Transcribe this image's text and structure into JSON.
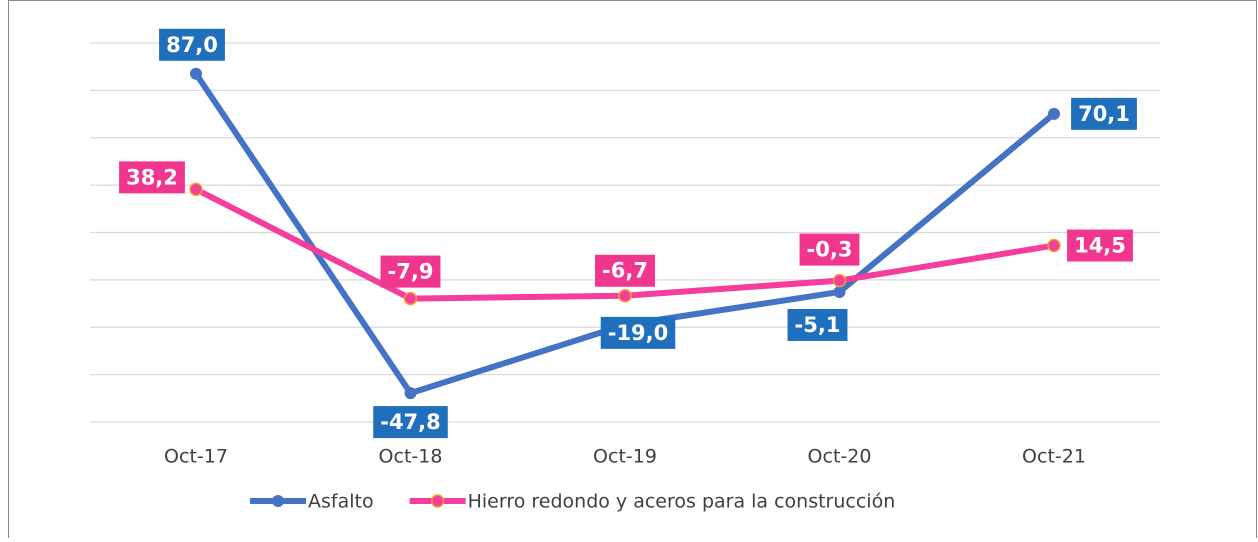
{
  "chart_data": {
    "type": "line",
    "categories": [
      "Oct-17",
      "Oct-18",
      "Oct-19",
      "Oct-20",
      "Oct-21"
    ],
    "series": [
      {
        "name": "Asfalto",
        "color": "#4472c4",
        "label_color": "#1f6fbd",
        "values": [
          87.0,
          -47.8,
          -19.0,
          -5.1,
          70.1
        ],
        "value_labels": [
          "87,0",
          "-47,8",
          "-19,0",
          "-5,1",
          "70,1"
        ]
      },
      {
        "name": "Hierro redondo y aceros para la construcción",
        "color": "#f53d9c",
        "label_color": "#f0368f",
        "values": [
          38.2,
          -7.9,
          -6.7,
          -0.3,
          14.5
        ],
        "value_labels": [
          "38,2",
          "-7,9",
          "-6,7",
          "-0,3",
          "14,5"
        ]
      }
    ],
    "ylim": [
      -60,
      100
    ],
    "yticks": [
      -60,
      -40,
      -20,
      0,
      20,
      40,
      60,
      80,
      100
    ],
    "grid": true,
    "legend": "bottom"
  }
}
